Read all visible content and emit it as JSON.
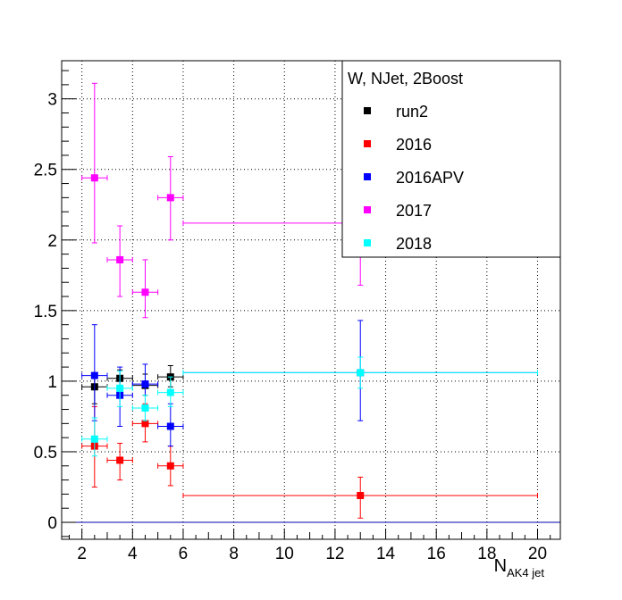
{
  "chart_data": {
    "type": "scatter",
    "title": "",
    "xlabel": "N",
    "xlabel_sub": "AK4 jet",
    "ylabel": "",
    "xlim": [
      1.2,
      20.9
    ],
    "ylim": [
      -0.12,
      3.27
    ],
    "x_ticks": [
      2,
      4,
      6,
      8,
      10,
      12,
      14,
      16,
      18,
      20
    ],
    "x_tick_labels": [
      "2",
      "4",
      "6",
      "8",
      "10",
      "12",
      "14",
      "16",
      "18",
      "20"
    ],
    "y_ticks": [
      0,
      0.5,
      1,
      1.5,
      2,
      2.5,
      3
    ],
    "y_tick_labels": [
      "0",
      "0.5",
      "1",
      "1.5",
      "2",
      "2.5",
      "3"
    ],
    "grid": true,
    "reference_line": {
      "y": 0,
      "color": "#0000aa"
    },
    "legend": {
      "header": "W, NJet, 2Boost",
      "placement": "top-right",
      "entries": [
        "run2",
        "2016",
        "2016APV",
        "2017",
        "2018"
      ]
    },
    "series": [
      {
        "name": "run2",
        "color": "#000000",
        "points": [
          {
            "x": 2.5,
            "xlo": 2.0,
            "xhi": 3.0,
            "y": 0.96,
            "ylo": 0.84,
            "yhi": 1.06
          },
          {
            "x": 3.5,
            "xlo": 3.0,
            "xhi": 4.0,
            "y": 1.02,
            "ylo": 0.95,
            "yhi": 1.08
          },
          {
            "x": 4.5,
            "xlo": 4.0,
            "xhi": 5.0,
            "y": 0.97,
            "ylo": 0.9,
            "yhi": 1.05
          },
          {
            "x": 5.5,
            "xlo": 5.0,
            "xhi": 6.0,
            "y": 1.03,
            "ylo": 0.96,
            "yhi": 1.11
          }
        ]
      },
      {
        "name": "2016",
        "color": "#ff0000",
        "points": [
          {
            "x": 2.5,
            "xlo": 2.0,
            "xhi": 3.0,
            "y": 0.54,
            "ylo": 0.25,
            "yhi": 0.82
          },
          {
            "x": 3.5,
            "xlo": 3.0,
            "xhi": 4.0,
            "y": 0.44,
            "ylo": 0.3,
            "yhi": 0.56
          },
          {
            "x": 4.5,
            "xlo": 4.0,
            "xhi": 5.0,
            "y": 0.7,
            "ylo": 0.57,
            "yhi": 0.84
          },
          {
            "x": 5.5,
            "xlo": 5.0,
            "xhi": 6.0,
            "y": 0.4,
            "ylo": 0.26,
            "yhi": 0.54
          },
          {
            "x": 13.0,
            "xlo": 6.0,
            "xhi": 20.0,
            "y": 0.19,
            "ylo": 0.03,
            "yhi": 0.32
          }
        ]
      },
      {
        "name": "2016APV",
        "color": "#0000ff",
        "points": [
          {
            "x": 2.5,
            "xlo": 2.0,
            "xhi": 3.0,
            "y": 1.04,
            "ylo": 0.72,
            "yhi": 1.4
          },
          {
            "x": 3.5,
            "xlo": 3.0,
            "xhi": 4.0,
            "y": 0.9,
            "ylo": 0.68,
            "yhi": 1.1
          },
          {
            "x": 4.5,
            "xlo": 4.0,
            "xhi": 5.0,
            "y": 0.98,
            "ylo": 0.83,
            "yhi": 1.12
          },
          {
            "x": 5.5,
            "xlo": 5.0,
            "xhi": 6.0,
            "y": 0.68,
            "ylo": 0.54,
            "yhi": 0.84
          },
          {
            "x": 13.0,
            "xlo": 6.0,
            "xhi": 20.0,
            "y": 1.06,
            "ylo": 0.72,
            "yhi": 1.43
          }
        ]
      },
      {
        "name": "2017",
        "color": "#ff00ff",
        "points": [
          {
            "x": 2.5,
            "xlo": 2.0,
            "xhi": 3.0,
            "y": 2.44,
            "ylo": 1.98,
            "yhi": 3.11
          },
          {
            "x": 3.5,
            "xlo": 3.0,
            "xhi": 4.0,
            "y": 1.86,
            "ylo": 1.6,
            "yhi": 2.1
          },
          {
            "x": 4.5,
            "xlo": 4.0,
            "xhi": 5.0,
            "y": 1.63,
            "ylo": 1.45,
            "yhi": 1.86
          },
          {
            "x": 5.5,
            "xlo": 5.0,
            "xhi": 6.0,
            "y": 2.3,
            "ylo": 2.0,
            "yhi": 2.59
          },
          {
            "x": 13.0,
            "xlo": 6.0,
            "xhi": 20.0,
            "y": 2.12,
            "ylo": 1.68,
            "yhi": 2.5
          }
        ]
      },
      {
        "name": "2018",
        "color": "#00ffff",
        "points": [
          {
            "x": 2.5,
            "xlo": 2.0,
            "xhi": 3.0,
            "y": 0.59,
            "ylo": 0.47,
            "yhi": 0.74
          },
          {
            "x": 3.5,
            "xlo": 3.0,
            "xhi": 4.0,
            "y": 0.95,
            "ylo": 0.82,
            "yhi": 1.07
          },
          {
            "x": 4.5,
            "xlo": 4.0,
            "xhi": 5.0,
            "y": 0.81,
            "ylo": 0.72,
            "yhi": 0.9
          },
          {
            "x": 5.5,
            "xlo": 5.0,
            "xhi": 6.0,
            "y": 0.92,
            "ylo": 0.82,
            "yhi": 1.03
          },
          {
            "x": 13.0,
            "xlo": 6.0,
            "xhi": 20.0,
            "y": 1.06,
            "ylo": 0.95,
            "yhi": 1.17
          }
        ]
      }
    ]
  }
}
